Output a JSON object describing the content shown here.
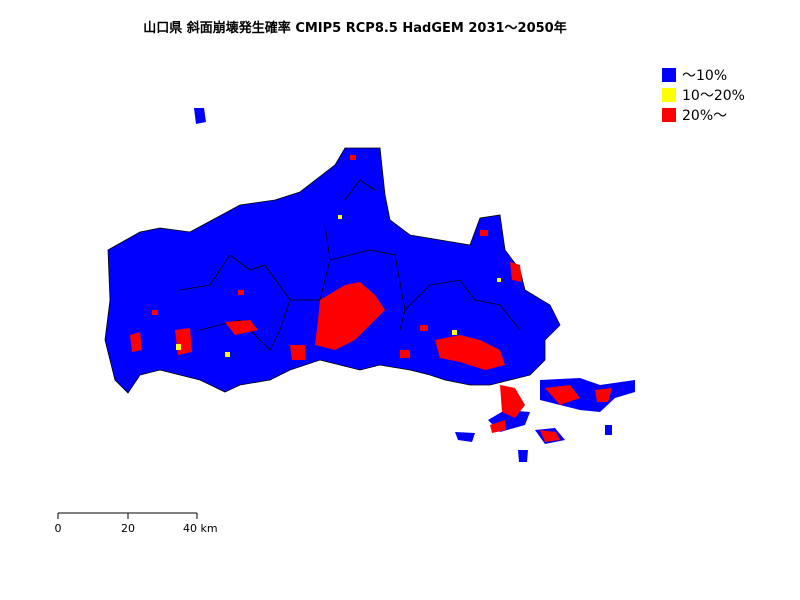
{
  "title": "山口県 斜面崩壊発生確率 CMIP5 RCP8.5 HadGEM 2031～2050年",
  "legend": [
    {
      "label": "～10%",
      "color": "#0000ff"
    },
    {
      "label": "10～20%",
      "color": "#ffff00"
    },
    {
      "label": "20%～",
      "color": "#ff0000"
    }
  ],
  "scale_bar": {
    "labels": [
      "0",
      "20",
      "40 km"
    ]
  }
}
